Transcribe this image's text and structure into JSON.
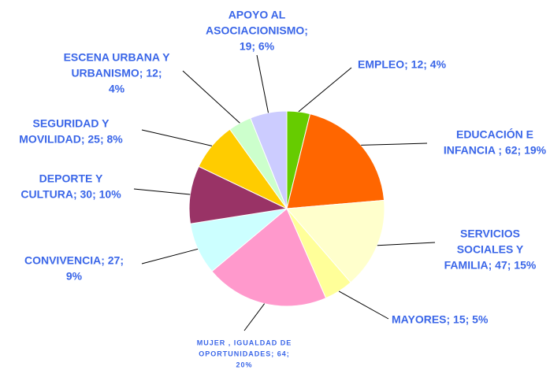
{
  "chart_data": {
    "type": "pie",
    "values": [
      12,
      62,
      47,
      15,
      64,
      27,
      30,
      25,
      12,
      19
    ],
    "value_labels": [
      [
        "EMPLEO; 12; 4%"
      ],
      [
        "EDUCACIÓN E",
        "INFANCIA ; 62; 19%"
      ],
      [
        "SERVICIOS",
        "SOCIALES Y",
        "FAMILIA; 47; 15%"
      ],
      [
        "MAYORES; 15; 5%"
      ],
      [
        "MUJER , IGUALDAD DE",
        "OPORTUNIDADES; 64;",
        "20%"
      ],
      [
        "CONVIVENCIA; 27;",
        "9%"
      ],
      [
        "DEPORTE Y",
        "CULTURA; 30; 10%"
      ],
      [
        "SEGURIDAD Y",
        "MOVILIDAD; 25; 8%"
      ],
      [
        "ESCENA URBANA Y",
        "URBANISMO; 12;",
        "4%"
      ],
      [
        "APOYO AL",
        "ASOCIACIONISMO;",
        "19; 6%"
      ]
    ],
    "colors": [
      "#66cc00",
      "#ff6600",
      "#ffffcc",
      "#ffff99",
      "#ff99cc",
      "#ccffff",
      "#993366",
      "#ffcc00",
      "#ccffcc",
      "#ccccff"
    ]
  }
}
